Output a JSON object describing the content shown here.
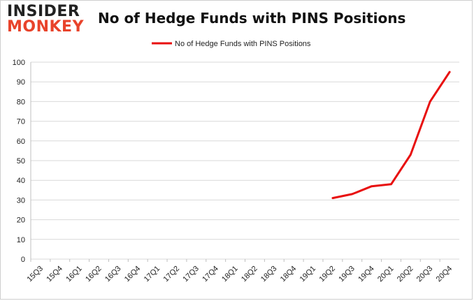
{
  "logo": {
    "line1": "INSIDER",
    "line2": "MONKEY"
  },
  "colors": {
    "line": "#e81010",
    "grid": "#d9d9d9",
    "logo_accent": "#e8432b"
  },
  "chart_data": {
    "type": "line",
    "title": "No of Hedge Funds with PINS Positions",
    "xlabel": "",
    "ylabel": "",
    "categories": [
      "15Q3",
      "15Q4",
      "16Q1",
      "16Q2",
      "16Q3",
      "16Q4",
      "17Q1",
      "17Q2",
      "17Q3",
      "17Q4",
      "18Q1",
      "18Q2",
      "18Q3",
      "18Q4",
      "19Q1",
      "19Q2",
      "19Q3",
      "19Q4",
      "20Q1",
      "20Q2",
      "20Q3",
      "20Q4"
    ],
    "series": [
      {
        "name": "No of Hedge Funds with PINS Positions",
        "values": [
          null,
          null,
          null,
          null,
          null,
          null,
          null,
          null,
          null,
          null,
          null,
          null,
          null,
          null,
          null,
          31,
          33,
          37,
          38,
          53,
          80,
          95
        ]
      }
    ],
    "ylim": [
      0,
      100
    ],
    "yticks": [
      0,
      10,
      20,
      30,
      40,
      50,
      60,
      70,
      80,
      90,
      100
    ],
    "grid": true,
    "legend": "top-center"
  }
}
